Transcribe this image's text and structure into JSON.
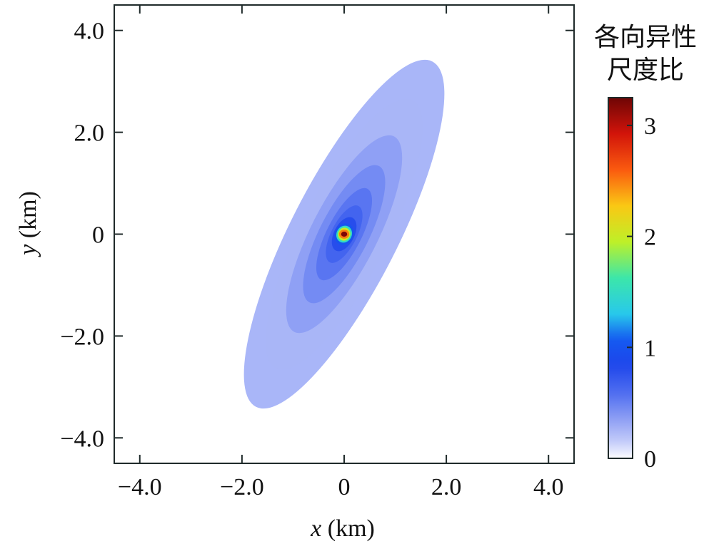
{
  "chart_data": {
    "type": "heatmap",
    "xlabel_var": "x",
    "xlabel_unit": " (km)",
    "ylabel_var": "y",
    "ylabel_unit": " (km)",
    "xlim": [
      -4.5,
      4.5
    ],
    "ylim": [
      -4.5,
      4.5
    ],
    "x_ticks": [
      -4.0,
      -2.0,
      0,
      2.0,
      4.0
    ],
    "x_tick_labels": [
      "−4.0",
      "−2.0",
      "0",
      "2.0",
      "4.0"
    ],
    "y_ticks": [
      -4.0,
      -2.0,
      0,
      2.0,
      4.0
    ],
    "y_tick_labels": [
      "−4.0",
      "−2.0",
      "0",
      "2.0",
      "4.0"
    ],
    "grid": false,
    "colorbar": {
      "title_lines": [
        "各向异性",
        "尺度比"
      ],
      "range": [
        0,
        3.25
      ],
      "ticks": [
        0,
        1,
        2,
        3
      ],
      "tick_labels": [
        "0",
        "1",
        "2",
        "3"
      ],
      "colormap": "jet"
    },
    "field": {
      "description_free": true,
      "center": [
        0,
        0
      ],
      "contours": [
        {
          "level": 0.15,
          "semi_major": 3.8,
          "semi_minor": 1.05,
          "rotation_deg": 63
        },
        {
          "level": 0.25,
          "semi_major": 2.95,
          "semi_minor": 0.85,
          "rotation_deg": 63
        },
        {
          "level": 0.35,
          "semi_major": 2.15,
          "semi_minor": 0.65,
          "rotation_deg": 63
        },
        {
          "level": 0.45,
          "semi_major": 1.5,
          "semi_minor": 0.48,
          "rotation_deg": 63
        },
        {
          "level": 0.55,
          "semi_major": 1.0,
          "semi_minor": 0.34,
          "rotation_deg": 63
        },
        {
          "level": 0.65,
          "semi_major": 0.62,
          "semi_minor": 0.25,
          "rotation_deg": 63
        },
        {
          "level": 0.8,
          "semi_major": 0.36,
          "semi_minor": 0.2,
          "rotation_deg": 63
        },
        {
          "level": 1.0,
          "semi_major": 0.22,
          "semi_minor": 0.18,
          "rotation_deg": 63
        },
        {
          "level": 1.5,
          "semi_major": 0.17,
          "semi_minor": 0.15,
          "rotation_deg": 63
        },
        {
          "level": 2.0,
          "semi_major": 0.13,
          "semi_minor": 0.12,
          "rotation_deg": 63
        },
        {
          "level": 2.5,
          "semi_major": 0.1,
          "semi_minor": 0.09,
          "rotation_deg": 0
        },
        {
          "level": 3.2,
          "semi_major": 0.06,
          "semi_minor": 0.05,
          "rotation_deg": 0
        }
      ]
    },
    "colors": {
      "axis": "#1f2a2a",
      "contour_outer": "#a9b6f8"
    }
  }
}
